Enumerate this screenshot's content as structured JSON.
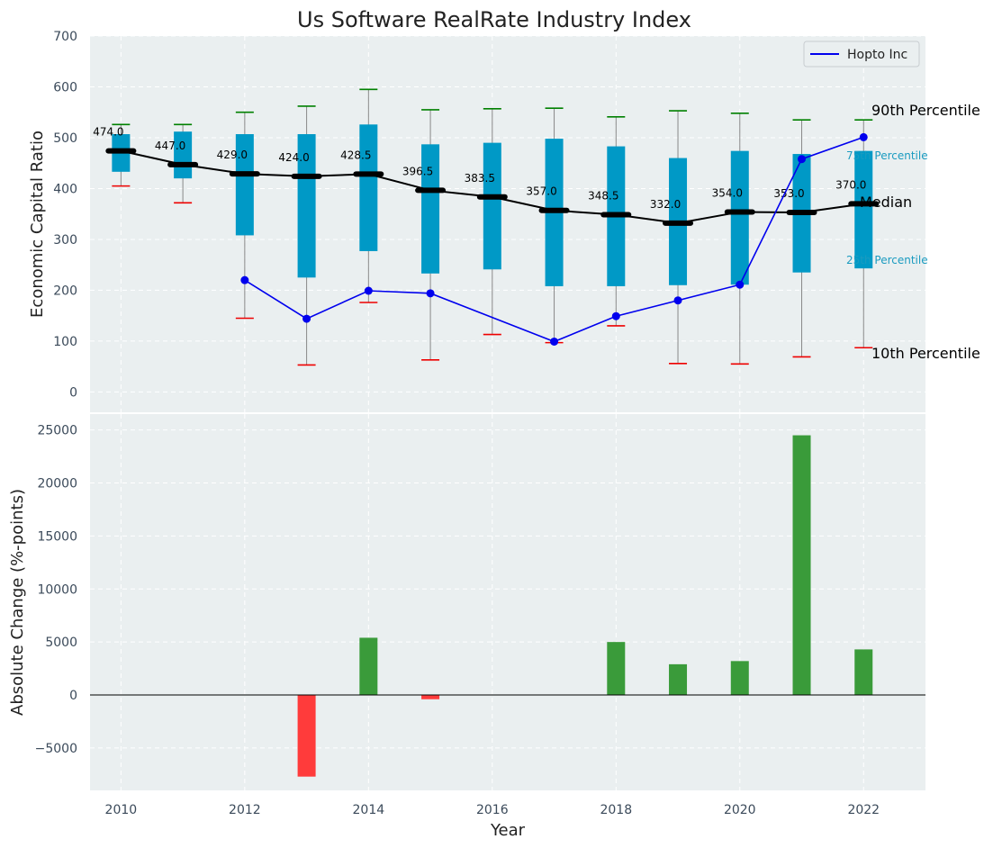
{
  "chart_data": [
    {
      "type": "box",
      "title": "Us Software RealRate Industry Index",
      "ylabel": "Economic Capital Ratio",
      "ylim": [
        -40,
        700
      ],
      "yticks": [
        0,
        100,
        200,
        300,
        400,
        500,
        600,
        700
      ],
      "grid": true,
      "legend_position": "top-right",
      "colors": {
        "box": "#0099c6",
        "median": "#000000",
        "company": "#0000ee",
        "p90": "#008000",
        "p10": "#ee0000",
        "whisker": "#888888",
        "background": "#eaeff0"
      },
      "years": [
        2010,
        2011,
        2012,
        2013,
        2014,
        2015,
        2016,
        2017,
        2018,
        2019,
        2020,
        2021,
        2022
      ],
      "median": [
        474,
        447,
        429,
        424,
        428.5,
        396.5,
        383.5,
        357,
        348.5,
        332,
        354,
        353,
        370
      ],
      "median_labels": [
        "474.0",
        "447.0",
        "429.0",
        "424.0",
        "428.5",
        "396.5",
        "383.5",
        "357.0",
        "348.5",
        "332.0",
        "354.0",
        "353.0",
        "370.0"
      ],
      "q1": [
        433,
        420,
        308,
        225,
        277,
        233,
        241,
        208,
        208,
        210,
        211,
        235,
        243
      ],
      "q3": [
        507,
        512,
        507,
        507,
        526,
        487,
        490,
        498,
        483,
        460,
        474,
        468,
        474
      ],
      "p90": [
        526,
        526,
        550,
        562,
        595,
        555,
        557,
        558,
        541,
        553,
        548,
        535,
        535
      ],
      "p10": [
        405,
        372,
        145,
        53,
        176,
        63,
        113,
        97,
        130,
        56,
        55,
        69,
        87
      ],
      "company": {
        "name": "Hopto Inc",
        "x": [
          2012,
          2013,
          2014,
          2015,
          2017,
          2018,
          2019,
          2020,
          2021,
          2022
        ],
        "y": [
          220,
          144,
          199,
          194,
          99,
          149,
          180,
          211,
          458,
          501
        ]
      },
      "annotations": {
        "p90": "90th Percentile",
        "q3": "75th Percentile",
        "median": "Median",
        "q1": "25th Percentile",
        "p10": "10th Percentile"
      }
    },
    {
      "type": "bar",
      "xlabel": "Year",
      "ylabel": "Absolute Change (%-points)",
      "xlim": [
        2009.5,
        2023
      ],
      "xticks": [
        2010,
        2012,
        2014,
        2016,
        2018,
        2020,
        2022
      ],
      "ylim": [
        -9000,
        26500
      ],
      "yticks": [
        -5000,
        0,
        5000,
        10000,
        15000,
        20000,
        25000
      ],
      "ytick_labels": [
        "−5000",
        "0",
        "5000",
        "10000",
        "15000",
        "20000",
        "25000"
      ],
      "colors": {
        "positive": "#3a9b3a",
        "negative": "#ff3b3b"
      },
      "x": [
        2013,
        2014,
        2015,
        2018,
        2019,
        2020,
        2021,
        2022
      ],
      "values": [
        -7700,
        5400,
        -400,
        5000,
        2900,
        3200,
        24500,
        4300
      ]
    }
  ]
}
